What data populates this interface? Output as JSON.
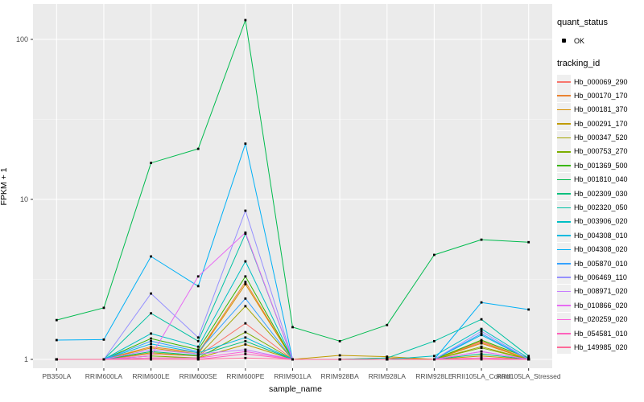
{
  "chart_data": {
    "type": "line",
    "title": "",
    "xlabel": "sample_name",
    "ylabel": "FPKM + 1",
    "y_scale": "log10",
    "y_ticks": [
      1,
      10,
      100
    ],
    "y_minor_ticks": [
      3.162,
      31.623
    ],
    "ylim": [
      0.93,
      150
    ],
    "grid": "white major+minor on gray panel",
    "legend_position": "right",
    "categories": [
      "PB350LA",
      "RRIM600LA",
      "RRIM600LE",
      "RRIM600SE",
      "RRIM600PE",
      "RRIM901LA",
      "RRIM928BA",
      "RRIM928LA",
      "RRIM928LE",
      "RRII105LA_Control",
      "RRII105LA_Stressed"
    ],
    "series": [
      {
        "name": "Hb_000069_290",
        "color": "#F8766D",
        "values": [
          1,
          1,
          1.08,
          1.05,
          1.68,
          1,
          1,
          1,
          1,
          1.28,
          1
        ]
      },
      {
        "name": "Hb_000170_170",
        "color": "#EA8331",
        "values": [
          1,
          1,
          1.2,
          1.1,
          3.05,
          1,
          1,
          1.02,
          1,
          1.3,
          1
        ]
      },
      {
        "name": "Hb_000181_370",
        "color": "#D89000",
        "values": [
          1,
          1,
          1.18,
          1.08,
          2.95,
          1,
          1,
          1,
          1,
          1.26,
          1
        ]
      },
      {
        "name": "Hb_000291_170",
        "color": "#C09B00",
        "values": [
          1,
          1,
          1.02,
          1.02,
          1.24,
          1,
          1.06,
          1.04,
          1,
          1.05,
          1
        ]
      },
      {
        "name": "Hb_000347_520",
        "color": "#A3A500",
        "values": [
          1,
          1,
          1.1,
          1.05,
          2.15,
          1,
          1,
          1,
          1,
          1.2,
          1
        ]
      },
      {
        "name": "Hb_000753_270",
        "color": "#7CAE00",
        "values": [
          1,
          1,
          1.05,
          1.02,
          1.48,
          1,
          1,
          1,
          1,
          1.18,
          1
        ]
      },
      {
        "name": "Hb_001369_500",
        "color": "#39B600",
        "values": [
          1,
          1,
          1.35,
          1.15,
          3.3,
          1,
          1,
          1,
          1,
          1.32,
          1.02
        ]
      },
      {
        "name": "Hb_001810_040",
        "color": "#00BB4E",
        "values": [
          1.76,
          2.1,
          16.9,
          20.7,
          132,
          1.59,
          1.3,
          1.64,
          4.5,
          5.6,
          5.4
        ]
      },
      {
        "name": "Hb_002309_030",
        "color": "#00BF7D",
        "values": [
          1,
          1,
          1.12,
          1.06,
          1.3,
          1,
          1,
          1,
          1,
          1.08,
          1
        ]
      },
      {
        "name": "Hb_002320_050",
        "color": "#00C1A3",
        "values": [
          1,
          1,
          1.94,
          1.3,
          6.1,
          1,
          1,
          1.02,
          1.3,
          1.78,
          1.05
        ]
      },
      {
        "name": "Hb_003906_020",
        "color": "#00BFC4",
        "values": [
          1,
          1,
          1.45,
          1.2,
          4.1,
          1,
          1,
          1,
          1.05,
          1.55,
          1.02
        ]
      },
      {
        "name": "Hb_004308_010",
        "color": "#00BAE0",
        "values": [
          1,
          1,
          1.25,
          1.1,
          1.37,
          1,
          1,
          1,
          1,
          1.42,
          1
        ]
      },
      {
        "name": "Hb_004308_020",
        "color": "#00B0F6",
        "values": [
          1.32,
          1.33,
          4.4,
          2.87,
          22.3,
          1,
          1,
          1,
          1,
          2.27,
          2.05
        ]
      },
      {
        "name": "Hb_005870_010",
        "color": "#35A2FF",
        "values": [
          1,
          1,
          1.3,
          1.12,
          2.4,
          1,
          1,
          1,
          1,
          1.45,
          1
        ]
      },
      {
        "name": "Hb_006469_110",
        "color": "#9590FF",
        "values": [
          1,
          1,
          2.58,
          1.37,
          8.5,
          1,
          1,
          1,
          1,
          1.5,
          1
        ]
      },
      {
        "name": "Hb_008971_020",
        "color": "#C77CFF",
        "values": [
          1,
          1,
          1.15,
          1.08,
          1.15,
          1,
          1,
          1,
          1,
          1.12,
          1
        ]
      },
      {
        "name": "Hb_010866_020",
        "color": "#E76BF3",
        "values": [
          1,
          1,
          1.05,
          3.3,
          6.2,
          1,
          1,
          1,
          1,
          1.12,
          1
        ]
      },
      {
        "name": "Hb_020259_020",
        "color": "#FA62DB",
        "values": [
          1,
          1,
          1.02,
          1.02,
          1.12,
          1,
          1,
          1,
          1,
          1.02,
          1
        ]
      },
      {
        "name": "Hb_054581_010",
        "color": "#FF62BC",
        "values": [
          1,
          1,
          1,
          1,
          1.08,
          1,
          1,
          1,
          1,
          1.02,
          1
        ]
      },
      {
        "name": "Hb_149985_020",
        "color": "#FF6A98",
        "values": [
          1,
          1,
          1,
          1,
          1.02,
          1,
          1,
          1,
          1,
          1,
          1
        ]
      }
    ]
  },
  "legend": {
    "quant_status_title": "quant_status",
    "quant_status_items": [
      {
        "label": "OK",
        "symbol": "black-point"
      }
    ],
    "tracking_title": "tracking_id"
  },
  "colors": {
    "panel_bg": "#EBEBEB",
    "grid_major": "#FFFFFF",
    "grid_minor": "#FFFFFF",
    "marker": "#000000",
    "tick_text": "#4D4D4D",
    "axis_text": "#000000",
    "legend_key_bg": "#EFEFEF"
  }
}
